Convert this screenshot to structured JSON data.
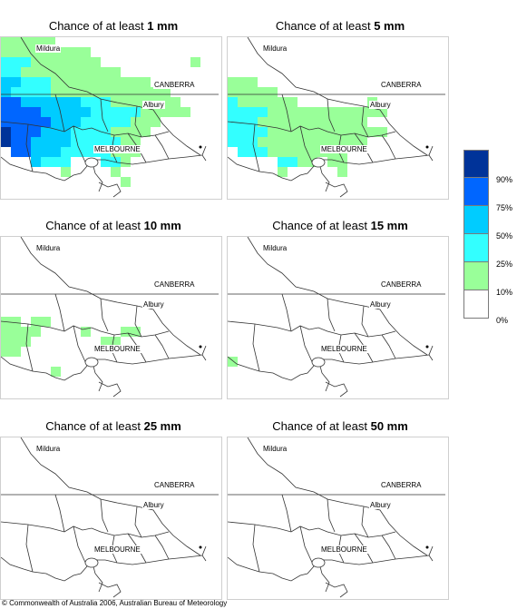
{
  "colors": {
    "scale": [
      "#003399",
      "#0066ff",
      "#00ccff",
      "#33ffff",
      "#99ff99",
      "#ffffff"
    ]
  },
  "legend": {
    "labels": [
      "90%",
      "75%",
      "50%",
      "25%",
      "10%",
      "0%"
    ]
  },
  "panels": [
    {
      "prefix": "Chance of at least ",
      "amount": "1 mm"
    },
    {
      "prefix": "Chance of at least ",
      "amount": "5 mm"
    },
    {
      "prefix": "Chance of at least ",
      "amount": "10 mm"
    },
    {
      "prefix": "Chance of at least ",
      "amount": "15 mm"
    },
    {
      "prefix": "Chance of at least ",
      "amount": "25 mm"
    },
    {
      "prefix": "Chance of at least ",
      "amount": "50 mm"
    }
  ],
  "places": {
    "mildura": "Mildura",
    "canberra": "CANBERRA",
    "albury": "Albury",
    "melbourne": "MELBOURNE"
  },
  "copyright": "© Commonwealth of Australia 2006, Australian Bureau of Meteorology"
}
